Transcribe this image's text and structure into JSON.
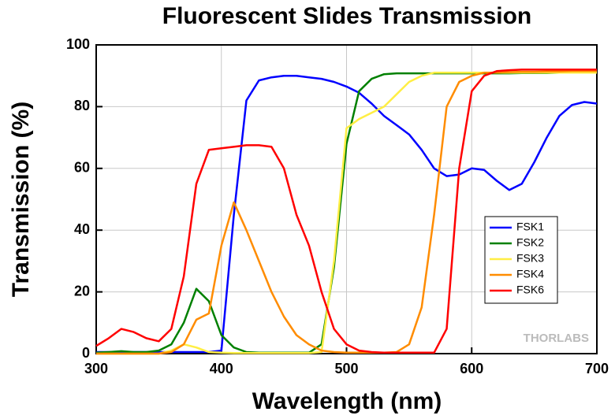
{
  "chart_data": {
    "type": "line",
    "title": "Fluorescent Slides Transmission",
    "x_label": "Wavelength (nm)",
    "y_label": "Transmission (%)",
    "watermark": "THORLABS",
    "x": [
      300,
      310,
      320,
      330,
      340,
      350,
      360,
      370,
      380,
      390,
      400,
      410,
      420,
      430,
      440,
      450,
      460,
      470,
      480,
      490,
      500,
      510,
      520,
      530,
      540,
      550,
      560,
      570,
      580,
      590,
      600,
      610,
      620,
      630,
      640,
      650,
      660,
      670,
      680,
      690,
      700
    ],
    "series": [
      {
        "name": "FSK1",
        "color": "#0000ff",
        "values": [
          0.5,
          0.5,
          0.5,
          0.5,
          0.5,
          0.5,
          0.5,
          0.5,
          0.5,
          0.5,
          1,
          45,
          82,
          88.5,
          89.5,
          90,
          90,
          89.5,
          89,
          88,
          86.5,
          84.5,
          81,
          77,
          74,
          71,
          66,
          60,
          57.5,
          58,
          60,
          59.5,
          56,
          53,
          55,
          62,
          70,
          77,
          80.5,
          81.5,
          81
        ]
      },
      {
        "name": "FSK2",
        "color": "#008000",
        "values": [
          0.3,
          0.5,
          0.8,
          0.5,
          0.5,
          1,
          3,
          10,
          21,
          17,
          6,
          2,
          0.5,
          0.3,
          0.3,
          0.3,
          0.3,
          0.3,
          3,
          28,
          68,
          85,
          89,
          90.5,
          90.8,
          90.8,
          90.8,
          90.8,
          90.8,
          90.8,
          90.8,
          90.8,
          90.8,
          90.8,
          90.9,
          90.9,
          90.9,
          91,
          91,
          91,
          91
        ]
      },
      {
        "name": "FSK3",
        "color": "#ffee44",
        "values": [
          0,
          0,
          0,
          0,
          0,
          0,
          1,
          3,
          2,
          0.5,
          0.3,
          0.2,
          0.2,
          0.2,
          0.2,
          0.2,
          0.2,
          0.2,
          0.5,
          30,
          73,
          76,
          78,
          80,
          84,
          88,
          90,
          91,
          91,
          91,
          91,
          91,
          91,
          91,
          91,
          91,
          91,
          91,
          91,
          91,
          91
        ]
      },
      {
        "name": "FSK4",
        "color": "#ff8c00",
        "values": [
          0,
          0,
          0,
          0,
          0,
          0,
          0.5,
          3,
          11,
          13,
          35,
          49,
          40,
          30,
          20,
          12,
          6,
          3,
          1,
          0.5,
          0.3,
          0.3,
          0.3,
          0.3,
          0.5,
          3,
          15,
          45,
          80,
          88,
          90,
          91,
          91,
          91.2,
          91.3,
          91.3,
          91.4,
          91.4,
          91.5,
          91.5,
          91.5
        ]
      },
      {
        "name": "FSK6",
        "color": "#ff0000",
        "values": [
          2.5,
          5,
          8,
          7,
          5,
          4,
          8,
          25,
          55,
          66,
          66.5,
          67,
          67.5,
          67.5,
          67,
          60,
          45,
          35,
          20,
          8,
          3,
          1,
          0.5,
          0.3,
          0.3,
          0.3,
          0.3,
          0.3,
          8,
          60,
          85,
          90,
          91.5,
          91.8,
          92,
          92,
          92,
          92,
          92,
          92,
          92
        ]
      }
    ],
    "xlim": [
      300,
      700
    ],
    "ylim": [
      0,
      100
    ],
    "xticks": [
      300,
      400,
      500,
      600,
      700
    ],
    "yticks": [
      0,
      20,
      40,
      60,
      80,
      100
    ],
    "grid": true,
    "legend": "right"
  }
}
